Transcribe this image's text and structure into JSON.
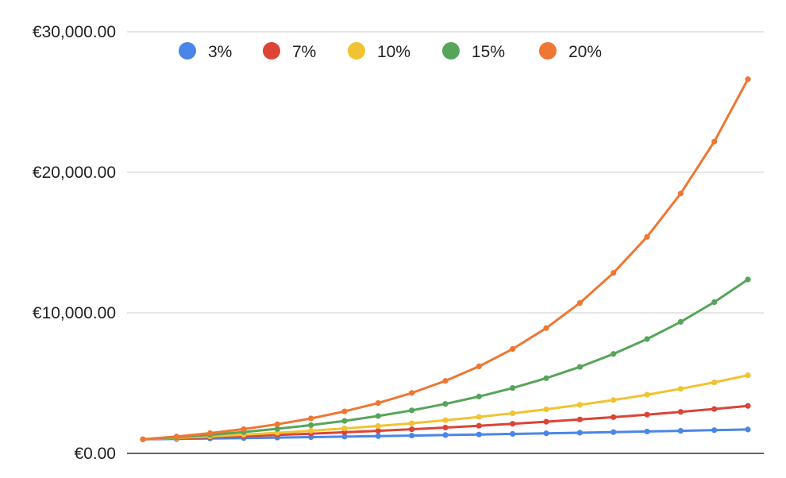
{
  "chart_data": {
    "type": "line",
    "title": "",
    "xlabel": "",
    "ylabel": "",
    "x": [
      0,
      1,
      2,
      3,
      4,
      5,
      6,
      7,
      8,
      9,
      10,
      11,
      12,
      13,
      14,
      15,
      16,
      17,
      18
    ],
    "ylim": [
      0,
      30000
    ],
    "y_ticks": [
      {
        "value": 0,
        "label": "€0.00"
      },
      {
        "value": 10000,
        "label": "€10,000.00"
      },
      {
        "value": 20000,
        "label": "€20,000.00"
      },
      {
        "value": 30000,
        "label": "€30,000.00"
      }
    ],
    "grid": true,
    "legend_position": "top-left",
    "series": [
      {
        "name": "3%",
        "color": "#4a86e8",
        "values": [
          1000,
          1030,
          1061,
          1093,
          1126,
          1159,
          1194,
          1230,
          1267,
          1305,
          1344,
          1384,
          1426,
          1469,
          1513,
          1558,
          1605,
          1653,
          1702
        ]
      },
      {
        "name": "7%",
        "color": "#db4437",
        "values": [
          1000,
          1070,
          1145,
          1225,
          1311,
          1403,
          1501,
          1606,
          1718,
          1838,
          1967,
          2105,
          2252,
          2410,
          2579,
          2759,
          2952,
          3159,
          3380
        ]
      },
      {
        "name": "10%",
        "color": "#f1c232",
        "values": [
          1000,
          1100,
          1210,
          1331,
          1464,
          1611,
          1772,
          1949,
          2144,
          2358,
          2594,
          2853,
          3138,
          3452,
          3797,
          4177,
          4595,
          5054,
          5560
        ]
      },
      {
        "name": "15%",
        "color": "#57a55a",
        "values": [
          1000,
          1150,
          1323,
          1521,
          1749,
          2011,
          2313,
          2660,
          3059,
          3518,
          4046,
          4652,
          5350,
          6153,
          7076,
          8137,
          9358,
          10761,
          12375
        ]
      },
      {
        "name": "20%",
        "color": "#ee7733",
        "values": [
          1000,
          1200,
          1440,
          1728,
          2074,
          2488,
          2986,
          3583,
          4300,
          5160,
          6192,
          7430,
          8916,
          10699,
          12839,
          15407,
          18488,
          22186,
          26623
        ]
      }
    ]
  }
}
